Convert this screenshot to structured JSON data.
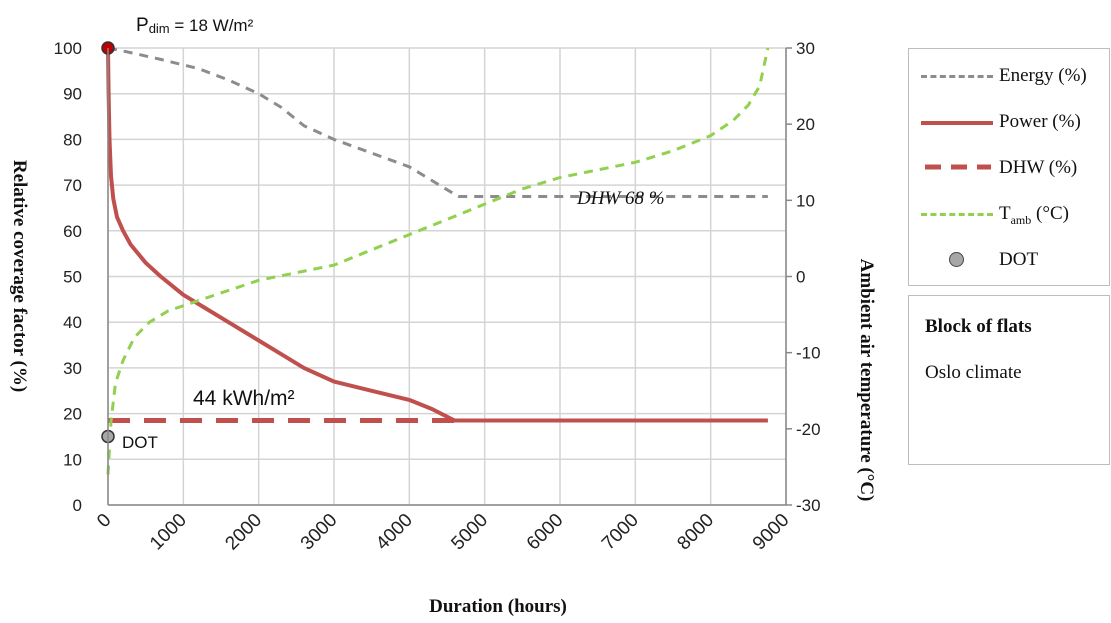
{
  "chart_data": {
    "type": "line",
    "title": "",
    "xlabel": "Duration (hours)",
    "ylabel_left": "Relative coverage factor (%)",
    "ylabel_right": "Ambient air temperature (°C)",
    "xlim": [
      0,
      9000
    ],
    "ylim_left": [
      0,
      100
    ],
    "ylim_right": [
      -30,
      30
    ],
    "x_ticks": [
      "0",
      "1000",
      "2000",
      "3000",
      "4000",
      "5000",
      "6000",
      "7000",
      "8000",
      "9000"
    ],
    "y_left_ticks": [
      "0",
      "10",
      "20",
      "30",
      "40",
      "50",
      "60",
      "70",
      "80",
      "90",
      "100"
    ],
    "y_right_ticks": [
      "-30",
      "-20",
      "-10",
      "0",
      "10",
      "20",
      "30"
    ],
    "grid": true,
    "legend_position": "right",
    "series": [
      {
        "name": "Energy (%)",
        "axis": "left",
        "color": "#8c8c8c",
        "style": "dashed",
        "x": [
          0,
          300,
          700,
          1200,
          1600,
          2000,
          2300,
          2600,
          3000,
          3500,
          4000,
          4300,
          4650,
          5000,
          6000,
          7000,
          8000,
          8760
        ],
        "y": [
          100,
          99,
          97.5,
          95.5,
          93,
          90,
          87,
          83,
          80,
          77,
          74,
          71,
          67.5,
          67.5,
          67.5,
          67.5,
          67.5,
          67.5
        ]
      },
      {
        "name": "Power (%)",
        "axis": "left",
        "color": "#c0504d",
        "style": "solid",
        "x": [
          0,
          8,
          20,
          40,
          70,
          120,
          200,
          300,
          400,
          500,
          700,
          1000,
          1300,
          1600,
          2000,
          2300,
          2600,
          3000,
          3500,
          4000,
          4300,
          4600,
          5000,
          6000,
          7000,
          8000,
          8760
        ],
        "y": [
          100,
          90,
          80,
          72,
          67,
          63,
          60,
          57,
          55,
          53,
          50,
          46,
          43,
          40,
          36,
          33,
          30,
          27,
          25,
          23,
          21,
          18.5,
          18.5,
          18.5,
          18.5,
          18.5,
          18.5
        ]
      },
      {
        "name": "DHW (%)",
        "axis": "left",
        "color": "#c0504d",
        "style": "long-dashed",
        "x": [
          0,
          4650
        ],
        "y": [
          18.5,
          18.5
        ]
      },
      {
        "name": "Tamb (°C)",
        "axis": "right",
        "color": "#92d050",
        "style": "dashed",
        "x": [
          0,
          40,
          100,
          200,
          350,
          550,
          800,
          1100,
          1400,
          1700,
          2000,
          2500,
          3000,
          3500,
          4000,
          4500,
          5000,
          5500,
          6000,
          6500,
          7000,
          7500,
          8000,
          8300,
          8500,
          8650,
          8760
        ],
        "y": [
          -26,
          -19,
          -14,
          -11,
          -8,
          -6,
          -4.5,
          -3.5,
          -2.5,
          -1.5,
          -0.5,
          0.5,
          1.5,
          3.5,
          5.5,
          7.5,
          9.5,
          11.5,
          13,
          14,
          15,
          16.5,
          18.5,
          20.5,
          22.5,
          25,
          30
        ]
      }
    ],
    "points": [
      {
        "name": "DOT",
        "axis": "left",
        "x": 0,
        "y": 15,
        "color": "#a7a7a7"
      },
      {
        "name": "Pdim",
        "axis": "left",
        "x": 0,
        "y": 100,
        "color": "#c00000"
      }
    ],
    "annotations": {
      "pdim_sub_main": "P",
      "pdim_sub": "dim",
      "pdim_rest": " = 18 W/m²",
      "energy44": "44 kWh/m²",
      "dhw68": "DHW 68 %",
      "dot_label": "DOT"
    }
  },
  "legend": {
    "items": [
      {
        "label": "Energy (%)",
        "color": "#8c8c8c",
        "style": "dashed"
      },
      {
        "label": "Power (%)",
        "color": "#c0504d",
        "style": "solid"
      },
      {
        "label": "DHW (%)",
        "color": "#c0504d",
        "style": "long-dashed"
      },
      {
        "label_main": "T",
        "label_sub": "amb",
        "label_rest": " (°C)",
        "color": "#92d050",
        "style": "dashed"
      },
      {
        "label": "DOT",
        "color": "#a7a7a7",
        "style": "dot"
      }
    ]
  },
  "info": {
    "title": "Block of flats",
    "subtitle": "Oslo climate"
  }
}
